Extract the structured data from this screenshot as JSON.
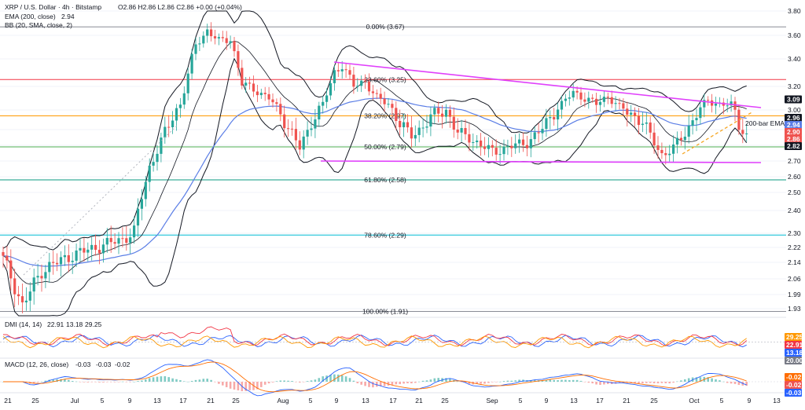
{
  "header": {
    "symbol": "XRP / U.S. Dollar · 4h · Bitstamp",
    "ohlc": "O2.86 H2.86 L2.86 C2.86 +0.00 (+0.04%)",
    "ema_legend": "EMA (200, close)",
    "ema_value": "2.94",
    "bb_legend": "BB (20, SMA, close, 2)"
  },
  "dmi_legend": {
    "label": "DMI (14, 14)",
    "v1": "22.91",
    "v2": "13.18",
    "v3": "29.25"
  },
  "macd_legend": {
    "label": "MACD (12, 26, close)",
    "v1": "-0.03",
    "v2": "-0.03",
    "v3": "-0.02"
  },
  "annotations": {
    "ema_label": "200-bar EMA"
  },
  "colors": {
    "up": "#26a69a",
    "down": "#ef5350",
    "ema": "#5b7ee6",
    "bb": "#131722",
    "trendline": "#e040fb",
    "support_dash": "#f5a623",
    "dmi_plus": "#2962ff",
    "dmi_minus": "#f23645",
    "adx": "#ff9800",
    "macd": "#2962ff",
    "signal": "#ff6d00"
  },
  "chart_data": {
    "type": "candlestick",
    "title": "XRP / U.S. Dollar · 4h · Bitstamp",
    "ylim": [
      1.88,
      3.84
    ],
    "y_ticks": [
      "3.80",
      "3.60",
      "3.40",
      "3.20",
      "3.00",
      "2.90",
      "2.80",
      "2.70",
      "2.60",
      "2.50",
      "2.40",
      "2.30",
      "2.22",
      "2.14",
      "2.06",
      "1.99",
      "1.93"
    ],
    "x_ticks": [
      "21",
      "25",
      "Jul",
      "5",
      "9",
      "13",
      "17",
      "21",
      "25",
      "Aug",
      "5",
      "9",
      "13",
      "17",
      "21",
      "25",
      "Sep",
      "5",
      "9",
      "13",
      "17",
      "21",
      "25",
      "Oct",
      "5",
      "9",
      "13"
    ],
    "price_tags": [
      {
        "label": "3.09",
        "value": 3.09,
        "color": "#131722"
      },
      {
        "label": "2.96",
        "value": 2.96,
        "color": "#131722"
      },
      {
        "label": "2.94",
        "value": 2.94,
        "color": "#5b7ee6"
      },
      {
        "label": "2.90",
        "value": 2.9,
        "color": "#ef5350"
      },
      {
        "label": "2.86",
        "value": 2.86,
        "color": "#ef5350"
      },
      {
        "label": "2.82",
        "value": 2.82,
        "color": "#131722"
      }
    ],
    "fibonacci": [
      {
        "label": "0.00% (3.67)",
        "value": 3.67,
        "color": "#787b86"
      },
      {
        "label": "23.60% (3.25)",
        "value": 3.25,
        "color": "#f23645"
      },
      {
        "label": "38.20% (2.97)",
        "value": 2.97,
        "color": "#ff9800"
      },
      {
        "label": "50.00% (2.79)",
        "value": 2.79,
        "color": "#4caf50"
      },
      {
        "label": "61.80% (2.58)",
        "value": 2.58,
        "color": "#089981"
      },
      {
        "label": "78.60% (2.29)",
        "value": 2.29,
        "color": "#00bcd4"
      },
      {
        "label": "100.00% (1.91)",
        "value": 1.91,
        "color": "#787b86"
      }
    ],
    "dmi_tags": [
      {
        "label": "29.25",
        "color": "#ff9800"
      },
      {
        "label": "22.91",
        "color": "#f23645"
      },
      {
        "label": "13.18",
        "color": "#2962ff"
      },
      {
        "label": "20.00",
        "color": "#787b86"
      }
    ],
    "macd_tags": [
      {
        "label": "-0.02",
        "color": "#ff6d00"
      },
      {
        "label": "-0.02",
        "color": "#ef5350"
      },
      {
        "label": "-0.03",
        "color": "#2962ff"
      }
    ],
    "key_points": [
      [
        0,
        2.16
      ],
      [
        5,
        1.94
      ],
      [
        10,
        2.1
      ],
      [
        18,
        2.18
      ],
      [
        24,
        2.22
      ],
      [
        30,
        2.26
      ],
      [
        34,
        2.3
      ],
      [
        38,
        2.66
      ],
      [
        42,
        2.88
      ],
      [
        46,
        3.05
      ],
      [
        50,
        3.52
      ],
      [
        53,
        3.64
      ],
      [
        56,
        3.55
      ],
      [
        59,
        3.57
      ],
      [
        62,
        3.22
      ],
      [
        66,
        3.16
      ],
      [
        69,
        3.1
      ],
      [
        72,
        2.98
      ],
      [
        75,
        2.88
      ],
      [
        77,
        2.78
      ],
      [
        80,
        2.94
      ],
      [
        83,
        3.05
      ],
      [
        86,
        3.3
      ],
      [
        88,
        3.36
      ],
      [
        91,
        3.2
      ],
      [
        94,
        3.24
      ],
      [
        97,
        3.1
      ],
      [
        100,
        3.05
      ],
      [
        103,
        2.93
      ],
      [
        106,
        2.86
      ],
      [
        109,
        2.92
      ],
      [
        112,
        2.98
      ],
      [
        115,
        3.0
      ],
      [
        118,
        2.88
      ],
      [
        121,
        2.85
      ],
      [
        124,
        2.8
      ],
      [
        127,
        2.76
      ],
      [
        130,
        2.78
      ],
      [
        133,
        2.8
      ],
      [
        136,
        2.82
      ],
      [
        139,
        2.88
      ],
      [
        142,
        2.96
      ],
      [
        145,
        3.05
      ],
      [
        148,
        3.15
      ],
      [
        151,
        3.1
      ],
      [
        154,
        3.05
      ],
      [
        157,
        3.12
      ],
      [
        160,
        3.02
      ],
      [
        163,
        2.98
      ],
      [
        166,
        2.94
      ],
      [
        169,
        2.82
      ],
      [
        171,
        2.74
      ],
      [
        174,
        2.78
      ],
      [
        177,
        2.88
      ],
      [
        180,
        2.98
      ],
      [
        183,
        3.08
      ],
      [
        186,
        3.05
      ],
      [
        189,
        3.04
      ],
      [
        191,
        2.93
      ],
      [
        193,
        2.86
      ]
    ]
  }
}
